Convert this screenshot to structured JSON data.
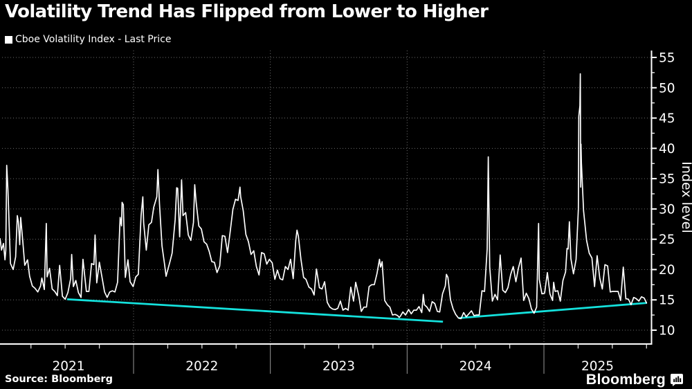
{
  "title": "Volatility Trend Has Flipped from Lower to Higher",
  "legend": {
    "swatch_color": "#ffffff",
    "label": "Cboe Volatility Index - Last Price"
  },
  "source": "Source: Bloomberg",
  "brand": {
    "wordmark": "Bloomberg",
    "icon": "bloomberg-terminal-icon"
  },
  "chart_data": {
    "type": "line",
    "title": "Cboe Volatility Index - Last Price",
    "xlabel": "",
    "ylabel": "Index level",
    "y_axis": {
      "min": 10,
      "max": 55,
      "major_tick_step": 5,
      "minor_tick_step": 2.5,
      "tick_labels": [
        "10",
        "15",
        "20",
        "25",
        "30",
        "35",
        "40",
        "45",
        "50",
        "55"
      ]
    },
    "x_axis": {
      "start": 2021.049,
      "end": 2025.784,
      "year_labels": [
        "2021",
        "2022",
        "2023",
        "2024",
        "2025"
      ],
      "quarter_minor_ticks": true
    },
    "grid": {
      "horizontal_major": true,
      "vertical_year_lines": true,
      "style": "dotted"
    },
    "legend_position": "top-left",
    "colors": {
      "series": "#ffffff",
      "trend": "#14e1dc",
      "grid": "#6e6e6e",
      "axis": "#ffffff",
      "year_label": "#e8e8e8",
      "background": "#000000"
    },
    "series": [
      {
        "name": "Cboe Volatility Index - Last Price",
        "points": [
          [
            2021.024,
            25.1
          ],
          [
            2021.035,
            23.2
          ],
          [
            2021.049,
            24.3
          ],
          [
            2021.06,
            21.6
          ],
          [
            2021.066,
            23.2
          ],
          [
            2021.073,
            37.2
          ],
          [
            2021.082,
            33.1
          ],
          [
            2021.1,
            21.0
          ],
          [
            2021.12,
            20.0
          ],
          [
            2021.138,
            22.1
          ],
          [
            2021.15,
            28.9
          ],
          [
            2021.158,
            27.9
          ],
          [
            2021.168,
            24.1
          ],
          [
            2021.175,
            28.6
          ],
          [
            2021.19,
            24.7
          ],
          [
            2021.205,
            20.7
          ],
          [
            2021.225,
            21.6
          ],
          [
            2021.24,
            18.9
          ],
          [
            2021.26,
            17.3
          ],
          [
            2021.28,
            16.9
          ],
          [
            2021.3,
            16.3
          ],
          [
            2021.32,
            17.3
          ],
          [
            2021.33,
            18.6
          ],
          [
            2021.348,
            16.7
          ],
          [
            2021.362,
            27.6
          ],
          [
            2021.368,
            18.8
          ],
          [
            2021.386,
            20.2
          ],
          [
            2021.405,
            16.8
          ],
          [
            2021.424,
            16.4
          ],
          [
            2021.443,
            15.7
          ],
          [
            2021.46,
            20.7
          ],
          [
            2021.48,
            15.6
          ],
          [
            2021.5,
            15.1
          ],
          [
            2021.52,
            16.2
          ],
          [
            2021.54,
            18.5
          ],
          [
            2021.548,
            22.5
          ],
          [
            2021.56,
            17.2
          ],
          [
            2021.578,
            18.2
          ],
          [
            2021.597,
            16.2
          ],
          [
            2021.616,
            15.4
          ],
          [
            2021.63,
            21.7
          ],
          [
            2021.655,
            16.4
          ],
          [
            2021.674,
            16.4
          ],
          [
            2021.693,
            21.0
          ],
          [
            2021.71,
            20.8
          ],
          [
            2021.719,
            25.7
          ],
          [
            2021.731,
            17.8
          ],
          [
            2021.75,
            21.2
          ],
          [
            2021.769,
            18.8
          ],
          [
            2021.788,
            16.3
          ],
          [
            2021.807,
            15.4
          ],
          [
            2021.826,
            16.3
          ],
          [
            2021.845,
            16.5
          ],
          [
            2021.864,
            16.3
          ],
          [
            2021.883,
            17.9
          ],
          [
            2021.902,
            28.6
          ],
          [
            2021.912,
            27.2
          ],
          [
            2021.916,
            31.1
          ],
          [
            2021.925,
            30.7
          ],
          [
            2021.94,
            18.7
          ],
          [
            2021.959,
            21.6
          ],
          [
            2021.975,
            18.0
          ],
          [
            2021.997,
            17.2
          ],
          [
            2022.016,
            18.8
          ],
          [
            2022.035,
            19.2
          ],
          [
            2022.055,
            28.9
          ],
          [
            2022.068,
            32.0
          ],
          [
            2022.074,
            27.7
          ],
          [
            2022.093,
            23.2
          ],
          [
            2022.112,
            27.4
          ],
          [
            2022.131,
            27.8
          ],
          [
            2022.148,
            30.3
          ],
          [
            2022.17,
            32.0
          ],
          [
            2022.178,
            36.5
          ],
          [
            2022.19,
            30.8
          ],
          [
            2022.208,
            23.9
          ],
          [
            2022.227,
            20.8
          ],
          [
            2022.238,
            18.9
          ],
          [
            2022.246,
            19.6
          ],
          [
            2022.265,
            21.2
          ],
          [
            2022.282,
            22.7
          ],
          [
            2022.304,
            28.2
          ],
          [
            2022.315,
            33.5
          ],
          [
            2022.323,
            33.4
          ],
          [
            2022.337,
            25.4
          ],
          [
            2022.351,
            34.8
          ],
          [
            2022.362,
            28.9
          ],
          [
            2022.381,
            29.4
          ],
          [
            2022.4,
            25.7
          ],
          [
            2022.419,
            24.8
          ],
          [
            2022.438,
            27.8
          ],
          [
            2022.447,
            34.0
          ],
          [
            2022.458,
            31.1
          ],
          [
            2022.477,
            27.2
          ],
          [
            2022.496,
            26.7
          ],
          [
            2022.515,
            24.6
          ],
          [
            2022.534,
            24.2
          ],
          [
            2022.553,
            23.0
          ],
          [
            2022.572,
            21.3
          ],
          [
            2022.591,
            21.2
          ],
          [
            2022.61,
            19.5
          ],
          [
            2022.63,
            20.6
          ],
          [
            2022.649,
            25.6
          ],
          [
            2022.668,
            25.5
          ],
          [
            2022.687,
            22.8
          ],
          [
            2022.707,
            26.3
          ],
          [
            2022.726,
            29.9
          ],
          [
            2022.745,
            31.6
          ],
          [
            2022.764,
            31.4
          ],
          [
            2022.778,
            33.6
          ],
          [
            2022.783,
            32.0
          ],
          [
            2022.802,
            29.7
          ],
          [
            2022.821,
            25.8
          ],
          [
            2022.84,
            24.6
          ],
          [
            2022.859,
            22.5
          ],
          [
            2022.879,
            23.1
          ],
          [
            2022.898,
            20.5
          ],
          [
            2022.917,
            19.1
          ],
          [
            2022.936,
            22.8
          ],
          [
            2022.955,
            22.6
          ],
          [
            2022.974,
            20.9
          ],
          [
            2022.993,
            21.7
          ],
          [
            2023.014,
            21.1
          ],
          [
            2023.033,
            18.4
          ],
          [
            2023.052,
            19.9
          ],
          [
            2023.071,
            18.5
          ],
          [
            2023.09,
            18.3
          ],
          [
            2023.11,
            20.5
          ],
          [
            2023.129,
            20.0
          ],
          [
            2023.148,
            21.7
          ],
          [
            2023.167,
            18.5
          ],
          [
            2023.186,
            24.8
          ],
          [
            2023.195,
            26.5
          ],
          [
            2023.205,
            25.5
          ],
          [
            2023.224,
            21.7
          ],
          [
            2023.243,
            18.7
          ],
          [
            2023.26,
            18.4
          ],
          [
            2023.282,
            17.1
          ],
          [
            2023.301,
            16.8
          ],
          [
            2023.32,
            15.8
          ],
          [
            2023.337,
            20.1
          ],
          [
            2023.359,
            17.0
          ],
          [
            2023.378,
            16.8
          ],
          [
            2023.397,
            18.0
          ],
          [
            2023.416,
            14.6
          ],
          [
            2023.435,
            13.8
          ],
          [
            2023.455,
            13.5
          ],
          [
            2023.474,
            13.4
          ],
          [
            2023.493,
            13.6
          ],
          [
            2023.512,
            14.8
          ],
          [
            2023.531,
            13.3
          ],
          [
            2023.55,
            13.6
          ],
          [
            2023.569,
            13.3
          ],
          [
            2023.588,
            17.1
          ],
          [
            2023.608,
            14.8
          ],
          [
            2023.624,
            17.9
          ],
          [
            2023.646,
            15.7
          ],
          [
            2023.665,
            13.1
          ],
          [
            2023.684,
            13.8
          ],
          [
            2023.703,
            13.8
          ],
          [
            2023.722,
            17.2
          ],
          [
            2023.741,
            17.5
          ],
          [
            2023.76,
            17.5
          ],
          [
            2023.779,
            19.3
          ],
          [
            2023.798,
            21.7
          ],
          [
            2023.806,
            20.4
          ],
          [
            2023.817,
            21.3
          ],
          [
            2023.836,
            14.9
          ],
          [
            2023.855,
            14.2
          ],
          [
            2023.874,
            13.8
          ],
          [
            2023.893,
            12.5
          ],
          [
            2023.912,
            12.6
          ],
          [
            2023.931,
            12.4
          ],
          [
            2023.942,
            12.1
          ],
          [
            2023.95,
            12.3
          ],
          [
            2023.969,
            13.0
          ],
          [
            2023.988,
            12.5
          ],
          [
            2024.011,
            13.4
          ],
          [
            2024.03,
            12.7
          ],
          [
            2024.049,
            13.3
          ],
          [
            2024.068,
            13.3
          ],
          [
            2024.087,
            13.9
          ],
          [
            2024.107,
            12.9
          ],
          [
            2024.118,
            15.9
          ],
          [
            2024.126,
            14.2
          ],
          [
            2024.145,
            13.8
          ],
          [
            2024.164,
            13.1
          ],
          [
            2024.183,
            14.7
          ],
          [
            2024.202,
            14.4
          ],
          [
            2024.221,
            13.1
          ],
          [
            2024.238,
            13.0
          ],
          [
            2024.259,
            16.0
          ],
          [
            2024.279,
            17.3
          ],
          [
            2024.287,
            19.2
          ],
          [
            2024.298,
            18.7
          ],
          [
            2024.317,
            15.0
          ],
          [
            2024.336,
            13.5
          ],
          [
            2024.355,
            12.6
          ],
          [
            2024.375,
            12.0
          ],
          [
            2024.394,
            11.9
          ],
          [
            2024.413,
            12.9
          ],
          [
            2024.432,
            12.2
          ],
          [
            2024.451,
            12.7
          ],
          [
            2024.47,
            13.2
          ],
          [
            2024.489,
            12.4
          ],
          [
            2024.508,
            12.5
          ],
          [
            2024.527,
            12.5
          ],
          [
            2024.547,
            16.5
          ],
          [
            2024.566,
            16.4
          ],
          [
            2024.585,
            23.4
          ],
          [
            2024.593,
            38.6
          ],
          [
            2024.604,
            20.4
          ],
          [
            2024.623,
            14.8
          ],
          [
            2024.642,
            15.9
          ],
          [
            2024.661,
            15.0
          ],
          [
            2024.68,
            22.4
          ],
          [
            2024.699,
            16.6
          ],
          [
            2024.718,
            16.2
          ],
          [
            2024.737,
            17.0
          ],
          [
            2024.757,
            19.2
          ],
          [
            2024.776,
            20.5
          ],
          [
            2024.795,
            18.0
          ],
          [
            2024.814,
            20.3
          ],
          [
            2024.833,
            21.9
          ],
          [
            2024.852,
            14.9
          ],
          [
            2024.871,
            16.1
          ],
          [
            2024.89,
            15.2
          ],
          [
            2024.909,
            13.5
          ],
          [
            2024.928,
            12.8
          ],
          [
            2024.947,
            13.8
          ],
          [
            2024.961,
            27.6
          ],
          [
            2024.966,
            18.4
          ],
          [
            2024.985,
            16.0
          ],
          [
            2025.005,
            16.1
          ],
          [
            2025.025,
            19.5
          ],
          [
            2025.044,
            16.0
          ],
          [
            2025.063,
            14.9
          ],
          [
            2025.071,
            17.9
          ],
          [
            2025.082,
            16.4
          ],
          [
            2025.101,
            16.5
          ],
          [
            2025.12,
            14.8
          ],
          [
            2025.139,
            18.2
          ],
          [
            2025.158,
            19.6
          ],
          [
            2025.169,
            23.5
          ],
          [
            2025.177,
            23.4
          ],
          [
            2025.186,
            27.9
          ],
          [
            2025.197,
            21.8
          ],
          [
            2025.216,
            19.3
          ],
          [
            2025.235,
            21.7
          ],
          [
            2025.252,
            30.0
          ],
          [
            2025.255,
            45.3
          ],
          [
            2025.263,
            47.0
          ],
          [
            2025.266,
            52.3
          ],
          [
            2025.269,
            33.6
          ],
          [
            2025.271,
            40.7
          ],
          [
            2025.274,
            37.6
          ],
          [
            2025.29,
            29.7
          ],
          [
            2025.312,
            24.8
          ],
          [
            2025.331,
            22.7
          ],
          [
            2025.351,
            21.9
          ],
          [
            2025.37,
            17.2
          ],
          [
            2025.389,
            22.3
          ],
          [
            2025.408,
            18.6
          ],
          [
            2025.427,
            16.8
          ],
          [
            2025.446,
            20.8
          ],
          [
            2025.466,
            20.6
          ],
          [
            2025.485,
            16.3
          ],
          [
            2025.501,
            16.4
          ],
          [
            2025.523,
            16.4
          ],
          [
            2025.542,
            16.4
          ],
          [
            2025.561,
            14.9
          ],
          [
            2025.58,
            20.4
          ],
          [
            2025.599,
            15.2
          ],
          [
            2025.618,
            15.1
          ],
          [
            2025.637,
            14.2
          ],
          [
            2025.656,
            15.4
          ],
          [
            2025.675,
            15.2
          ],
          [
            2025.694,
            14.8
          ],
          [
            2025.713,
            15.5
          ],
          [
            2025.733,
            15.3
          ],
          [
            2025.75,
            14.5
          ]
        ]
      }
    ],
    "trendlines": [
      {
        "name": "lower-highs-downtrend",
        "from": [
          2021.514,
          15.1
        ],
        "to": [
          2024.262,
          11.4
        ]
      },
      {
        "name": "higher-lows-uptrend",
        "from": [
          2024.38,
          12.0
        ],
        "to": [
          2025.753,
          14.5
        ]
      }
    ]
  }
}
